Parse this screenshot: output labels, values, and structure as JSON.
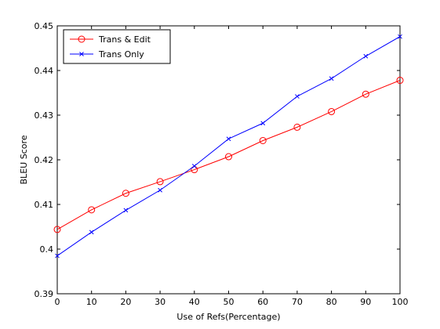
{
  "chart_data": {
    "type": "line",
    "xlabel": "Use of Refs(Percentage)",
    "ylabel": "BLEU Score",
    "xlim": [
      0,
      100
    ],
    "ylim": [
      0.39,
      0.45
    ],
    "x": [
      0,
      10,
      20,
      30,
      40,
      50,
      60,
      70,
      80,
      90,
      100
    ],
    "x_ticks": [
      "0",
      "10",
      "20",
      "30",
      "40",
      "50",
      "60",
      "70",
      "80",
      "90",
      "100"
    ],
    "y_ticks": [
      "0.39",
      "0.4",
      "0.41",
      "0.42",
      "0.43",
      "0.44",
      "0.45"
    ],
    "y_tick_values": [
      0.39,
      0.4,
      0.41,
      0.42,
      0.43,
      0.44,
      0.45
    ],
    "grid": false,
    "legend_position": "top-left",
    "series": [
      {
        "name": "Trans & Edit",
        "color": "#ff0000",
        "marker": "circle",
        "values": [
          0.4044,
          0.4088,
          0.4125,
          0.4151,
          0.4178,
          0.4207,
          0.4243,
          0.4273,
          0.4308,
          0.4347,
          0.4378
        ]
      },
      {
        "name": "Trans Only",
        "color": "#0000ff",
        "marker": "x",
        "values": [
          0.3985,
          0.4038,
          0.4087,
          0.4132,
          0.4186,
          0.4247,
          0.4282,
          0.4342,
          0.4382,
          0.4432,
          0.4476
        ]
      }
    ]
  }
}
